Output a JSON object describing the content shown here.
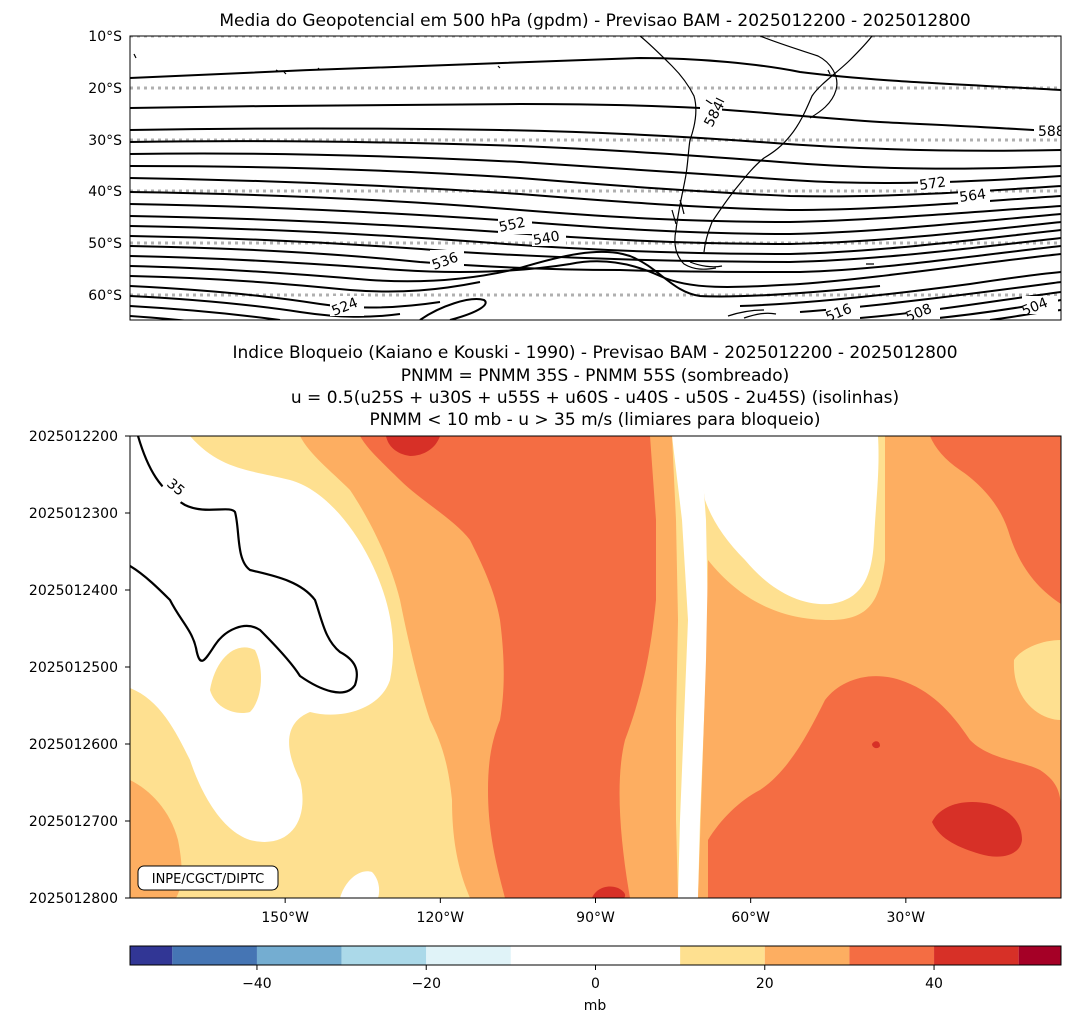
{
  "chart_data": [
    {
      "type": "contour-map",
      "title": "Media do Geopotencial em 500 hPa (gpdm) - Previsao BAM - 2025012200 - 2025012800",
      "variable": "geopotential height 500 hPa (gpdm)",
      "ylim": [
        -65,
        -10
      ],
      "yticks": [
        -10,
        -20,
        -30,
        -40,
        -50,
        -60
      ],
      "yticklabels": [
        "10°S",
        "20°S",
        "30°S",
        "40°S",
        "50°S",
        "60°S"
      ],
      "contour_interval": 4,
      "contour_labels": [
        {
          "text": "588",
          "lon_region": "east",
          "lat": -29
        },
        {
          "text": "584",
          "lon_region": "south-america",
          "lat": -24
        },
        {
          "text": "572",
          "lon_region": "east",
          "lat": -39
        },
        {
          "text": "564",
          "lon_region": "east",
          "lat": -41
        },
        {
          "text": "552",
          "lon_region": "central-pacific",
          "lat": -47
        },
        {
          "text": "540",
          "lon_region": "east-pacific",
          "lat": -50
        },
        {
          "text": "536",
          "lon_region": "central-pacific",
          "lat": -54
        },
        {
          "text": "524",
          "lon_region": "west-pacific",
          "lat": -62
        },
        {
          "text": "516",
          "lon_region": "south-atlantic",
          "lat": -64
        },
        {
          "text": "508",
          "lon_region": "south-atlantic",
          "lat": -64
        },
        {
          "text": "504",
          "lon_region": "far-east",
          "lat": -63
        }
      ],
      "grid": "dotted horizontal at each latitude tick"
    },
    {
      "type": "heatmap",
      "title_lines": [
        "Indice Bloqueio (Kaiano e Kouski - 1990) - Previsao BAM - 2025012200 - 2025012800",
        "PNMM = PNMM 35S - PNMM 55S (sombreado)",
        "u = 0.5(u25S + u30S + u55S + u60S - u40S - u50S - 2u45S) (isolinhas)",
        "PNMM < 10 mb - u > 35 m/s (limiares para bloqueio)"
      ],
      "xlim": [
        -180,
        0
      ],
      "xticks": [
        -150,
        -120,
        -90,
        -60,
        -30
      ],
      "xticklabels": [
        "150°W",
        "120°W",
        "90°W",
        "60°W",
        "30°W"
      ],
      "y_times": [
        "2025012200",
        "2025012300",
        "2025012400",
        "2025012500",
        "2025012600",
        "2025012700",
        "2025012800"
      ],
      "shading_levels": [
        -60,
        -50,
        -40,
        -30,
        -20,
        -10,
        10,
        20,
        30,
        40,
        50,
        60
      ],
      "shading_colors": [
        "#313695",
        "#4575b4",
        "#74add1",
        "#abd9e9",
        "#e0f3f8",
        "#ffffff",
        "#fee090",
        "#fdae61",
        "#f46d43",
        "#d73027",
        "#a50026"
      ],
      "contour_label": "35",
      "credit": "INPE/CGCT/DIPTC"
    },
    {
      "type": "colorbar",
      "ticks": [
        -40,
        -20,
        0,
        20,
        40
      ],
      "ticklabels": [
        "−40",
        "−20",
        "0",
        "20",
        "40"
      ],
      "unit": "mb",
      "range": [
        -55,
        55
      ]
    }
  ]
}
